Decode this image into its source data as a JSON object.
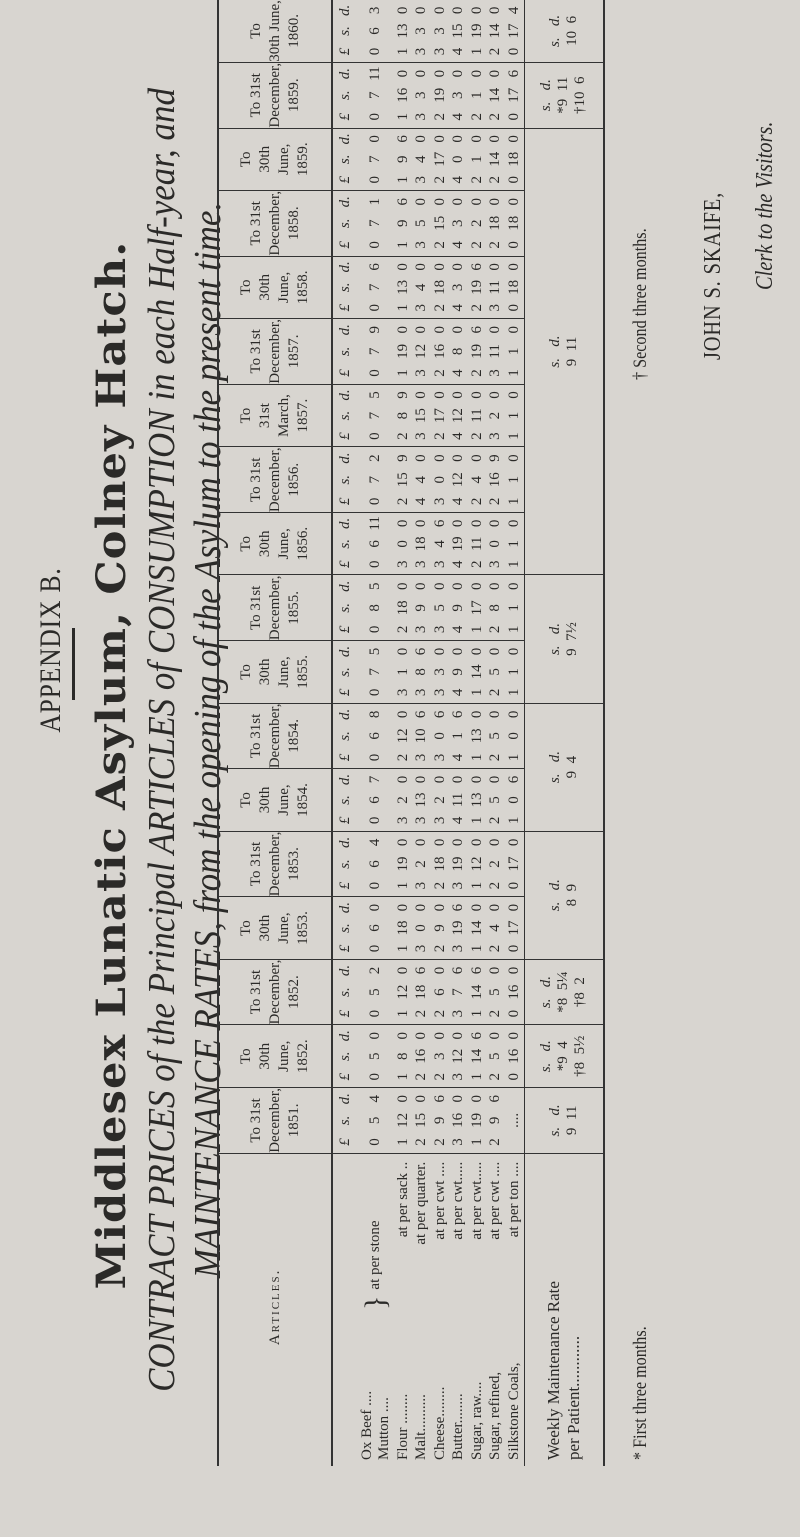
{
  "heading": {
    "appendix": "APPENDIX B.",
    "institution": "Middlesex Lunatic Asylum, Colney Hatch.",
    "subtitle_line1": "CONTRACT PRICES of the Principal ARTICLES of CONSUMPTION in each Half-year, and",
    "subtitle_line2": "MAINTENANCE RATES, from the opening of the Asylum to the present time."
  },
  "table": {
    "articles_header": "Articles.",
    "units": [
      "£",
      "s.",
      "d."
    ],
    "articles": [
      {
        "name": "Ox Beef ....",
        "unit": "at per stone"
      },
      {
        "name": "Mutton ....",
        "unit": ""
      },
      {
        "name": "Flour ........",
        "unit": "at per sack .."
      },
      {
        "name": "Malt..........",
        "unit": "at per quarter."
      },
      {
        "name": "Cheese........",
        "unit": "at per cwt ...."
      },
      {
        "name": "Butter........",
        "unit": "at per cwt....."
      },
      {
        "name": "Sugar, raw....",
        "unit": "at per cwt....."
      },
      {
        "name": "Sugar, refined,",
        "unit": "at per cwt ...."
      },
      {
        "name": "Silkstone Coals,",
        "unit": "at per ton ...."
      }
    ],
    "weekly_label_line1": "Weekly Maintenance Rate",
    "weekly_label_line2": "per Patient............",
    "periods": [
      {
        "h": [
          "To 31st",
          "December,",
          "1851."
        ],
        "v": [
          [
            "0",
            "5",
            "4"
          ],
          [
            "1",
            "12",
            "0"
          ],
          [
            "2",
            "15",
            "0"
          ],
          [
            "2",
            "9",
            "6"
          ],
          [
            "3",
            "16",
            "0"
          ],
          [
            "1",
            "19",
            "0"
          ],
          [
            "2",
            "9",
            "6"
          ],
          [
            "",
            "....",
            ""
          ]
        ]
      },
      {
        "h": [
          "To",
          "30th June,",
          "1852."
        ],
        "v": [
          [
            "0",
            "5",
            "0"
          ],
          [
            "1",
            "8",
            "0"
          ],
          [
            "2",
            "16",
            "0"
          ],
          [
            "2",
            "3",
            "0"
          ],
          [
            "3",
            "12",
            "0"
          ],
          [
            "1",
            "14",
            "6"
          ],
          [
            "2",
            "5",
            "0"
          ],
          [
            "0",
            "16",
            "0"
          ]
        ]
      },
      {
        "h": [
          "To 31st",
          "December,",
          "1852."
        ],
        "v": [
          [
            "0",
            "5",
            "2"
          ],
          [
            "1",
            "12",
            "0"
          ],
          [
            "2",
            "18",
            "6"
          ],
          [
            "2",
            "6",
            "0"
          ],
          [
            "3",
            "7",
            "6"
          ],
          [
            "1",
            "14",
            "6"
          ],
          [
            "2",
            "5",
            "0"
          ],
          [
            "0",
            "16",
            "0"
          ]
        ]
      },
      {
        "h": [
          "To",
          "30th June,",
          "1853."
        ],
        "v": [
          [
            "0",
            "6",
            "0"
          ],
          [
            "1",
            "18",
            "0"
          ],
          [
            "3",
            "0",
            "0"
          ],
          [
            "2",
            "9",
            "0"
          ],
          [
            "3",
            "19",
            "6"
          ],
          [
            "1",
            "14",
            "0"
          ],
          [
            "2",
            "4",
            "0"
          ],
          [
            "0",
            "17",
            "0"
          ]
        ]
      },
      {
        "h": [
          "To 31st",
          "December,",
          "1853."
        ],
        "v": [
          [
            "0",
            "6",
            "4"
          ],
          [
            "1",
            "19",
            "0"
          ],
          [
            "3",
            "2",
            "0"
          ],
          [
            "2",
            "18",
            "0"
          ],
          [
            "3",
            "19",
            "0"
          ],
          [
            "1",
            "12",
            "0"
          ],
          [
            "2",
            "2",
            "0"
          ],
          [
            "0",
            "17",
            "0"
          ]
        ]
      },
      {
        "h": [
          "To",
          "30th June,",
          "1854."
        ],
        "v": [
          [
            "0",
            "6",
            "7"
          ],
          [
            "3",
            "2",
            "0"
          ],
          [
            "3",
            "13",
            "0"
          ],
          [
            "3",
            "2",
            "0"
          ],
          [
            "4",
            "11",
            "0"
          ],
          [
            "1",
            "13",
            "0"
          ],
          [
            "2",
            "5",
            "0"
          ],
          [
            "1",
            "0",
            "6"
          ]
        ]
      },
      {
        "h": [
          "To 31st",
          "December,",
          "1854."
        ],
        "v": [
          [
            "0",
            "6",
            "8"
          ],
          [
            "2",
            "12",
            "0"
          ],
          [
            "3",
            "10",
            "6"
          ],
          [
            "3",
            "0",
            "6"
          ],
          [
            "4",
            "1",
            "6"
          ],
          [
            "1",
            "13",
            "0"
          ],
          [
            "2",
            "5",
            "0"
          ],
          [
            "1",
            "0",
            "0"
          ]
        ]
      },
      {
        "h": [
          "To",
          "30th June,",
          "1855."
        ],
        "v": [
          [
            "0",
            "7",
            "5"
          ],
          [
            "3",
            "1",
            "0"
          ],
          [
            "3",
            "8",
            "6"
          ],
          [
            "3",
            "3",
            "0"
          ],
          [
            "4",
            "9",
            "0"
          ],
          [
            "1",
            "14",
            "0"
          ],
          [
            "2",
            "5",
            "0"
          ],
          [
            "1",
            "1",
            "0"
          ]
        ]
      },
      {
        "h": [
          "To 31st",
          "December,",
          "1855."
        ],
        "v": [
          [
            "0",
            "8",
            "5"
          ],
          [
            "2",
            "18",
            "0"
          ],
          [
            "3",
            "9",
            "0"
          ],
          [
            "3",
            "5",
            "0"
          ],
          [
            "4",
            "9",
            "0"
          ],
          [
            "1",
            "17",
            "0"
          ],
          [
            "2",
            "8",
            "0"
          ],
          [
            "1",
            "1",
            "0"
          ]
        ]
      },
      {
        "h": [
          "To",
          "30th June,",
          "1856."
        ],
        "v": [
          [
            "0",
            "6",
            "11"
          ],
          [
            "3",
            "0",
            "0"
          ],
          [
            "3",
            "18",
            "0"
          ],
          [
            "3",
            "4",
            "6"
          ],
          [
            "4",
            "19",
            "0"
          ],
          [
            "2",
            "11",
            "0"
          ],
          [
            "3",
            "0",
            "0"
          ],
          [
            "1",
            "1",
            "0"
          ]
        ]
      },
      {
        "h": [
          "To 31st",
          "December,",
          "1856."
        ],
        "v": [
          [
            "0",
            "7",
            "2"
          ],
          [
            "2",
            "15",
            "9"
          ],
          [
            "4",
            "4",
            "0"
          ],
          [
            "3",
            "0",
            "0"
          ],
          [
            "4",
            "12",
            "0"
          ],
          [
            "2",
            "4",
            "0"
          ],
          [
            "2",
            "16",
            "9"
          ],
          [
            "1",
            "1",
            "0"
          ]
        ]
      },
      {
        "h": [
          "To",
          "31st March,",
          "1857."
        ],
        "v": [
          [
            "0",
            "7",
            "5"
          ],
          [
            "2",
            "8",
            "9"
          ],
          [
            "3",
            "15",
            "0"
          ],
          [
            "2",
            "17",
            "0"
          ],
          [
            "4",
            "12",
            "0"
          ],
          [
            "2",
            "11",
            "0"
          ],
          [
            "3",
            "2",
            "0"
          ],
          [
            "1",
            "1",
            "0"
          ]
        ]
      },
      {
        "h": [
          "To 31st",
          "December,",
          "1857."
        ],
        "v": [
          [
            "0",
            "7",
            "9"
          ],
          [
            "1",
            "19",
            "0"
          ],
          [
            "3",
            "12",
            "0"
          ],
          [
            "2",
            "16",
            "0"
          ],
          [
            "4",
            "8",
            "0"
          ],
          [
            "2",
            "19",
            "6"
          ],
          [
            "3",
            "11",
            "0"
          ],
          [
            "1",
            "1",
            "0"
          ]
        ]
      },
      {
        "h": [
          "To",
          "30th June,",
          "1858."
        ],
        "v": [
          [
            "0",
            "7",
            "6"
          ],
          [
            "1",
            "13",
            "0"
          ],
          [
            "3",
            "4",
            "0"
          ],
          [
            "2",
            "18",
            "0"
          ],
          [
            "4",
            "3",
            "0"
          ],
          [
            "2",
            "19",
            "6"
          ],
          [
            "3",
            "11",
            "0"
          ],
          [
            "0",
            "18",
            "0"
          ]
        ]
      },
      {
        "h": [
          "To 31st",
          "December,",
          "1858."
        ],
        "v": [
          [
            "0",
            "7",
            "1"
          ],
          [
            "1",
            "9",
            "6"
          ],
          [
            "3",
            "5",
            "0"
          ],
          [
            "2",
            "15",
            "0"
          ],
          [
            "4",
            "3",
            "0"
          ],
          [
            "2",
            "2",
            "0"
          ],
          [
            "2",
            "18",
            "0"
          ],
          [
            "0",
            "18",
            "0"
          ]
        ]
      },
      {
        "h": [
          "To",
          "30th June,",
          "1859."
        ],
        "v": [
          [
            "0",
            "7",
            "0"
          ],
          [
            "1",
            "9",
            "6"
          ],
          [
            "3",
            "4",
            "0"
          ],
          [
            "2",
            "17",
            "0"
          ],
          [
            "4",
            "0",
            "0"
          ],
          [
            "2",
            "1",
            "0"
          ],
          [
            "2",
            "14",
            "0"
          ],
          [
            "0",
            "18",
            "0"
          ]
        ]
      },
      {
        "h": [
          "To 31st",
          "December,",
          "1859."
        ],
        "v": [
          [
            "0",
            "7",
            "11"
          ],
          [
            "1",
            "16",
            "0"
          ],
          [
            "3",
            "3",
            "0"
          ],
          [
            "2",
            "19",
            "0"
          ],
          [
            "4",
            "3",
            "0"
          ],
          [
            "2",
            "1",
            "0"
          ],
          [
            "2",
            "14",
            "0"
          ],
          [
            "0",
            "17",
            "6"
          ]
        ]
      },
      {
        "h": [
          "To",
          "30th June,",
          "1860."
        ],
        "v": [
          [
            "0",
            "6",
            "3"
          ],
          [
            "1",
            "13",
            "0"
          ],
          [
            "3",
            "3",
            "0"
          ],
          [
            "3",
            "3",
            "0"
          ],
          [
            "4",
            "15",
            "0"
          ],
          [
            "1",
            "19",
            "0"
          ],
          [
            "2",
            "14",
            "0"
          ],
          [
            "0",
            "17",
            "4"
          ]
        ]
      }
    ],
    "weekly_units": "s.   d.",
    "weekly": [
      {
        "span": 1,
        "lines": [
          "9  11"
        ]
      },
      {
        "span": 1,
        "lines": [
          "*9  4",
          "†8  5½"
        ]
      },
      {
        "span": 1,
        "lines": [
          "*8  5¼",
          "†8  2"
        ]
      },
      {
        "span": 2,
        "lines": [
          "8  9"
        ]
      },
      {
        "span": 2,
        "lines": [
          "9  4"
        ]
      },
      {
        "span": 2,
        "lines": [
          "9  7½"
        ]
      },
      {
        "span": 7,
        "lines": [
          "9  11"
        ]
      },
      {
        "span": 1,
        "lines": [
          "*9  11",
          "†10  6"
        ]
      },
      {
        "span": 1,
        "lines": [
          "10  6"
        ]
      }
    ]
  },
  "footnotes": {
    "first": "* First three months.",
    "second": "† Second three months."
  },
  "signature": {
    "name": "JOHN S. SKAIFE,",
    "title": "Clerk to the Visitors."
  }
}
